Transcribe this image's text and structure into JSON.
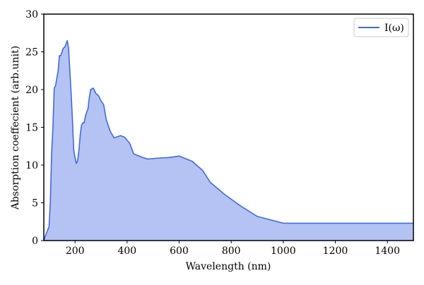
{
  "chart_data": {
    "type": "area",
    "xlabel": "Wavelength (nm)",
    "ylabel": "Absorption coeffecient (arb.unit)",
    "xlim": [
      80,
      1500
    ],
    "ylim": [
      0,
      30
    ],
    "x_ticks": [
      200,
      400,
      600,
      800,
      1000,
      1200,
      1400
    ],
    "y_ticks": [
      0,
      5,
      10,
      15,
      20,
      25,
      30
    ],
    "x_tick_labels": [
      "200",
      "400",
      "600",
      "800",
      "1000",
      "1200",
      "1400"
    ],
    "y_tick_labels": [
      "0",
      "5",
      "10",
      "15",
      "20",
      "25",
      "30"
    ],
    "grid": false,
    "legend_position": "top-right",
    "series": [
      {
        "name": "I(ω)",
        "line_color": "#4169e1",
        "fill_color": "#b4c3f4",
        "x": [
          80,
          85,
          90,
          100,
          105,
          110,
          115,
          120,
          125,
          130,
          135,
          140,
          145,
          150,
          155,
          160,
          165,
          170,
          175,
          180,
          185,
          190,
          195,
          200,
          205,
          210,
          215,
          220,
          225,
          230,
          235,
          240,
          245,
          250,
          255,
          260,
          270,
          280,
          290,
          300,
          310,
          320,
          335,
          350,
          375,
          390,
          410,
          425,
          460,
          480,
          510,
          560,
          600,
          650,
          690,
          720,
          775,
          840,
          900,
          1000,
          1080,
          1200,
          1330,
          1500
        ],
        "y": [
          0.0,
          0.5,
          1.0,
          1.8,
          5.0,
          11.5,
          15.0,
          20.2,
          20.5,
          21.5,
          22.5,
          24.5,
          24.5,
          25.0,
          25.5,
          25.6,
          26.0,
          26.5,
          25.5,
          22.5,
          19.5,
          16.0,
          12.0,
          11.0,
          10.2,
          10.6,
          12.0,
          14.0,
          15.3,
          15.6,
          15.6,
          16.5,
          17.0,
          17.5,
          19.0,
          20.0,
          20.2,
          19.5,
          19.2,
          18.5,
          18.0,
          16.0,
          14.5,
          13.6,
          13.9,
          13.7,
          12.9,
          11.5,
          11.0,
          10.8,
          10.9,
          11.0,
          11.2,
          10.5,
          9.3,
          7.7,
          6.1,
          4.5,
          3.2,
          2.3,
          2.3,
          2.3,
          2.3,
          2.3
        ]
      }
    ]
  }
}
